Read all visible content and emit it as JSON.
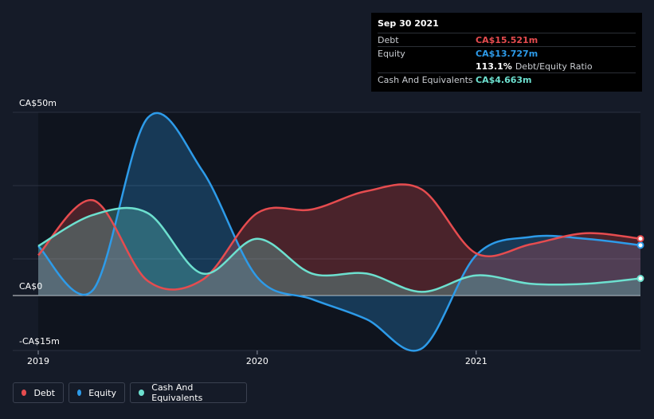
{
  "tooltip": {
    "date": "Sep 30 2021",
    "debt_label": "Debt",
    "debt_value": "CA$15.521m",
    "equity_label": "Equity",
    "equity_value": "CA$13.727m",
    "ratio_value": "113.1%",
    "ratio_label": "Debt/Equity Ratio",
    "cash_label": "Cash And Equivalents",
    "cash_value": "CA$4.663m"
  },
  "legend": {
    "debt": "Debt",
    "equity": "Equity",
    "cash": "Cash And Equivalents"
  },
  "colors": {
    "debt": "#e64c4f",
    "equity": "#2d9be9",
    "cash": "#6de0cf",
    "background": "#151b28",
    "plot_background": "#0f141e"
  },
  "chart_data": {
    "type": "area",
    "x_range": [
      2019.0,
      2021.75
    ],
    "ylim": [
      -15,
      50
    ],
    "y_ticks": [
      {
        "value": 50,
        "label": "CA$50m"
      },
      {
        "value": 0,
        "label": "CA$0"
      },
      {
        "value": -15,
        "label": "-CA$15m"
      }
    ],
    "x_ticks": [
      {
        "value": 2019,
        "label": "2019"
      },
      {
        "value": 2020,
        "label": "2020"
      },
      {
        "value": 2021,
        "label": "2021"
      }
    ],
    "series": [
      {
        "name": "Equity",
        "color": "#2d9be9",
        "x": [
          2019.0,
          2019.25,
          2019.5,
          2019.75,
          2020.0,
          2020.25,
          2020.5,
          2020.75,
          2021.0,
          2021.25,
          2021.5,
          2021.75
        ],
        "values": [
          13.5,
          1.5,
          48.5,
          34.0,
          5.0,
          -1.0,
          -6.5,
          -14.5,
          11.0,
          16.0,
          15.5,
          13.727
        ]
      },
      {
        "name": "Debt",
        "color": "#e64c4f",
        "x": [
          2019.0,
          2019.25,
          2019.5,
          2019.75,
          2020.0,
          2020.25,
          2020.5,
          2020.75,
          2021.0,
          2021.25,
          2021.5,
          2021.75
        ],
        "values": [
          11.0,
          26.0,
          4.0,
          4.3,
          22.5,
          23.5,
          28.5,
          29.0,
          11.5,
          14.0,
          17.0,
          15.521
        ]
      },
      {
        "name": "Cash And Equivalents",
        "color": "#6de0cf",
        "x": [
          2019.0,
          2019.25,
          2019.5,
          2019.75,
          2020.0,
          2020.25,
          2020.5,
          2020.75,
          2021.0,
          2021.25,
          2021.5,
          2021.75
        ],
        "values": [
          13.5,
          22.0,
          22.5,
          6.0,
          15.5,
          6.0,
          6.0,
          1.0,
          5.5,
          3.2,
          3.2,
          4.663
        ]
      }
    ]
  }
}
